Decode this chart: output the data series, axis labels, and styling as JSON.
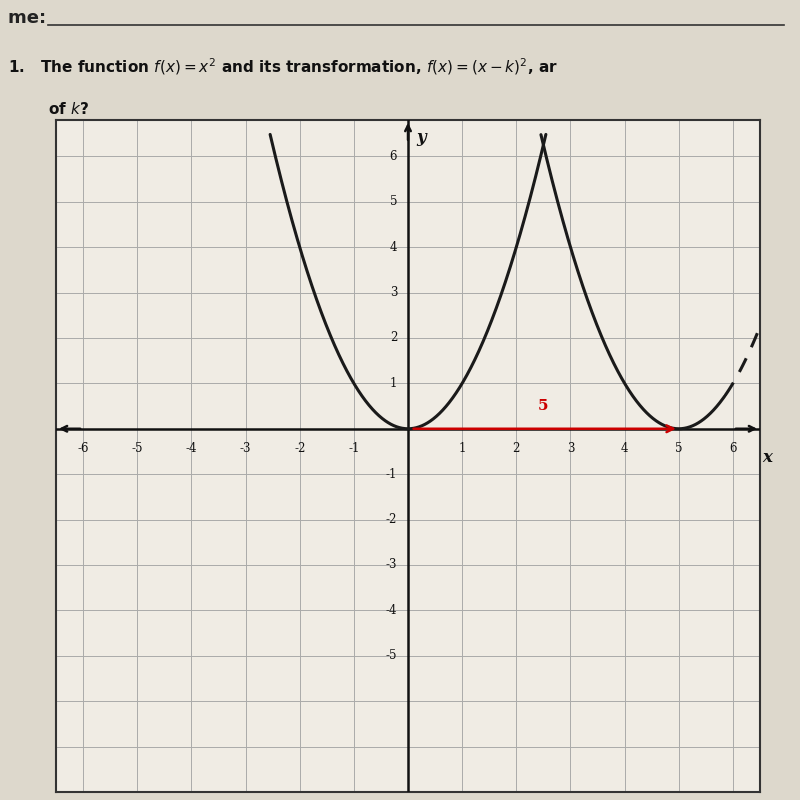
{
  "xlim": [
    -6.5,
    6.5
  ],
  "ylim": [
    -8,
    6.8
  ],
  "xticks": [
    -6,
    -5,
    -4,
    -3,
    -2,
    -1,
    1,
    2,
    3,
    4,
    5,
    6
  ],
  "yticks": [
    -5,
    -4,
    -3,
    -2,
    -1,
    1,
    2,
    3,
    4,
    5,
    6
  ],
  "grid_color": "#aaaaaa",
  "paper_color": "#ddd8cc",
  "graph_bg_color": "#f0ece4",
  "curve_color": "#1a1a1a",
  "k": 5,
  "arrow_color": "#cc0000",
  "arrow_label": "5"
}
